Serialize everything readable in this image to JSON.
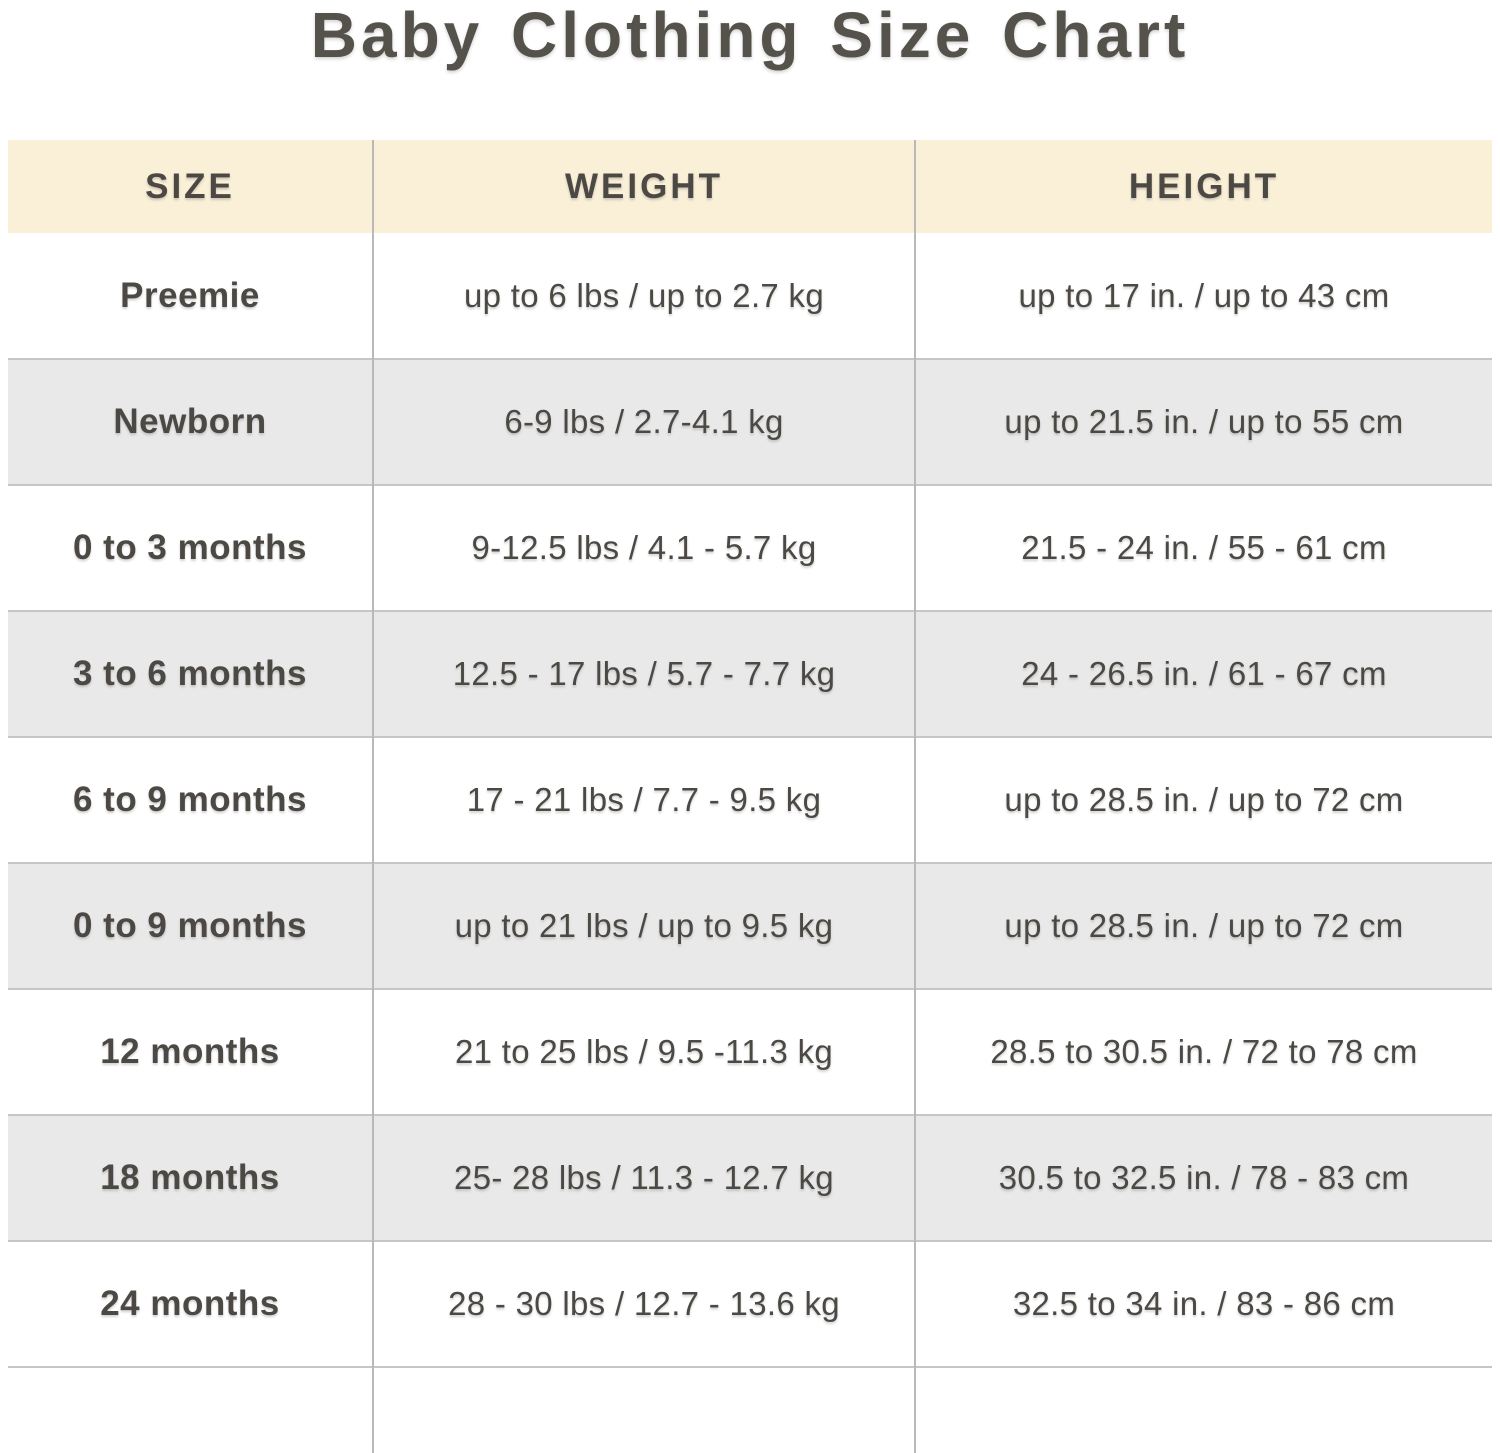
{
  "title": "Baby Clothing Size Chart",
  "chart_data": {
    "type": "table",
    "title": "Baby Clothing Size Chart",
    "columns": [
      "SIZE",
      "WEIGHT",
      "HEIGHT"
    ],
    "rows": [
      {
        "size": "Preemie",
        "weight": "up to 6 lbs / up to 2.7 kg",
        "height": "up to 17 in. / up to 43 cm"
      },
      {
        "size": "Newborn",
        "weight": "6-9 lbs / 2.7-4.1 kg",
        "height": "up to 21.5 in. / up to 55 cm"
      },
      {
        "size": "0 to 3 months",
        "weight": "9-12.5 lbs / 4.1 - 5.7 kg",
        "height": "21.5 - 24 in. / 55 - 61 cm"
      },
      {
        "size": "3 to 6 months",
        "weight": "12.5 - 17 lbs / 5.7 - 7.7 kg",
        "height": "24 - 26.5 in. / 61 - 67 cm"
      },
      {
        "size": "6 to 9 months",
        "weight": "17 - 21 lbs / 7.7 - 9.5 kg",
        "height": "up to 28.5 in. / up to 72 cm"
      },
      {
        "size": "0 to 9 months",
        "weight": "up to 21 lbs / up to 9.5 kg",
        "height": "up to 28.5 in. / up to 72 cm"
      },
      {
        "size": "12 months",
        "weight": "21 to 25 lbs / 9.5 -11.3 kg",
        "height": "28.5 to 30.5 in. / 72 to 78 cm"
      },
      {
        "size": "18 months",
        "weight": "25- 28 lbs / 11.3 - 12.7 kg",
        "height": "30.5 to 32.5 in. / 78 - 83 cm"
      },
      {
        "size": "24 months",
        "weight": "28 - 30 lbs / 12.7 - 13.6 kg",
        "height": "32.5 to 34 in. / 83 - 86 cm"
      }
    ],
    "layout": {
      "header_row": true,
      "alternating_row_shading": true,
      "trailing_empty_row": true
    }
  },
  "colors": {
    "header_bg": "#FAEFD7",
    "row_bg": "#FFFFFF",
    "row_alt_bg": "#E9E9E9",
    "border_vertical": "#B9B9B9",
    "border_horizontal": "#C6C6C6",
    "text": "#4C4944",
    "title_text": "#55524C"
  }
}
